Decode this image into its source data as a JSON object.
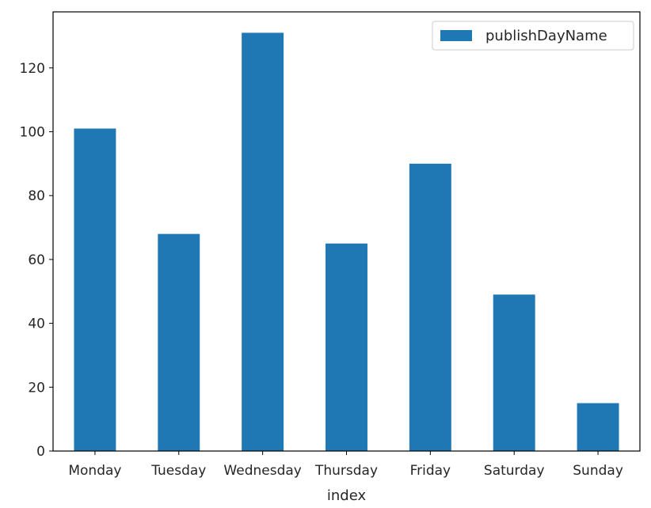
{
  "chart_data": {
    "type": "bar",
    "categories": [
      "Monday",
      "Tuesday",
      "Wednesday",
      "Thursday",
      "Friday",
      "Saturday",
      "Sunday"
    ],
    "series": [
      {
        "name": "publishDayName",
        "values": [
          101,
          68,
          131,
          65,
          90,
          49,
          15
        ]
      }
    ],
    "title": "",
    "xlabel": "index",
    "ylabel": "",
    "ylim": [
      0,
      137.55
    ],
    "yticks": [
      0,
      20,
      40,
      60,
      80,
      100,
      120
    ],
    "grid": false,
    "legend_position": "top-right",
    "colors": {
      "bar": "#1f77b4",
      "axis": "#000000",
      "text": "#262626"
    }
  }
}
